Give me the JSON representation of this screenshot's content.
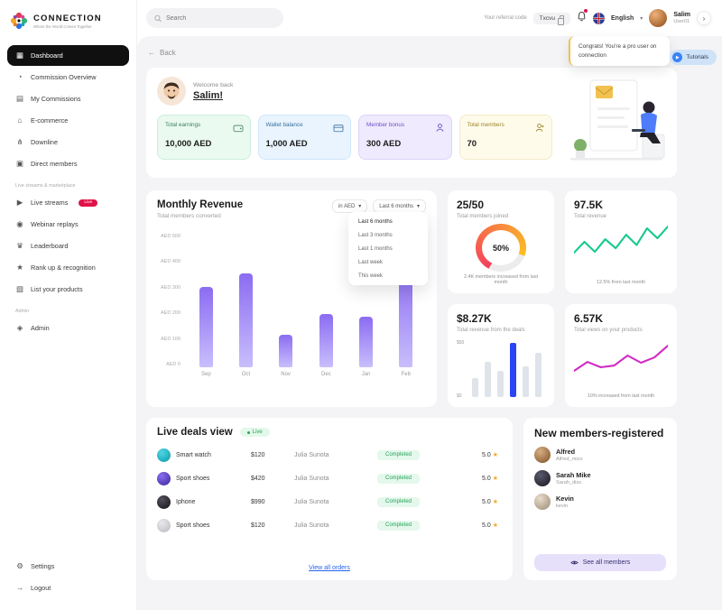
{
  "brand": {
    "name": "CONNECTION",
    "tagline": "Where the World Comes Together"
  },
  "icons": {
    "dashboard": "▦",
    "commission_overview": "◔",
    "my_commissions": "▤",
    "ecommerce": "⌂",
    "downline": "⋔",
    "direct_members": "▣",
    "live_streams": "▶",
    "webinar_replays": "◉",
    "leaderboard": "♛",
    "rank_up": "★",
    "list_products": "▧",
    "admin": "◈",
    "settings": "⚙",
    "logout": "→",
    "chevron_down": "▾",
    "back_arrow": "←",
    "star": "★",
    "arrow_right": "›",
    "tutorial_play": "▶"
  },
  "topbar": {
    "search_placeholder": "Search",
    "referral_label": "Your referral code",
    "referral_code": "Txcvu",
    "language": "English",
    "user_name": "Salim",
    "user_handle": "User01",
    "toast_text": "Congrats! You're a pro user on connection",
    "tutorials_label": "Tutorials"
  },
  "sidebar": {
    "items": [
      {
        "label": "Dashboard"
      },
      {
        "label": "Commission Overview"
      },
      {
        "label": "My Commissions"
      },
      {
        "label": "E-commerce"
      },
      {
        "label": "Downline"
      },
      {
        "label": "Direct members"
      }
    ],
    "section_live_label": "Live streams & marketplace",
    "live_items": [
      {
        "label": "Live streams",
        "badge": "Live"
      },
      {
        "label": "Webinar replays"
      },
      {
        "label": "Leaderboard"
      },
      {
        "label": "Rank up & recognition"
      },
      {
        "label": "List your products"
      }
    ],
    "section_admin_label": "Admin",
    "admin_items": [
      {
        "label": "Admin"
      }
    ],
    "footer_items": [
      {
        "label": "Settings"
      },
      {
        "label": "Logout"
      }
    ]
  },
  "main": {
    "back_label": "Back",
    "welcome": {
      "greeting": "Welcome back",
      "name": "Salim!"
    },
    "stats": [
      {
        "label": "Total earnings",
        "value": "10,000 AED"
      },
      {
        "label": "Wallet balance",
        "value": "1,000 AED"
      },
      {
        "label": "Member bonus",
        "value": "300 AED"
      },
      {
        "label": "Total members",
        "value": "70"
      }
    ],
    "monthly_revenue": {
      "title": "Monthly Revenue",
      "subtitle": "Total members converted",
      "currency_select": "in AED",
      "range_select": "Last 6 months",
      "dropdown_options": [
        "Last 6 months",
        "Last 3 months",
        "Last 1 months",
        "Last week",
        "This week"
      ]
    },
    "members_card": {
      "value": "25/50",
      "label": "Total members joined",
      "percent": "50%",
      "footnote": "2.4K members increased from last month"
    },
    "revenue_card": {
      "value": "97.5K",
      "label": "Total revenue",
      "footnote": "12.5% from last month"
    },
    "deals_card": {
      "value": "$8.27K",
      "label": "Total revenue from the deals"
    },
    "views_card": {
      "value": "6.57K",
      "label": "Total views on your products",
      "footnote": "10% increased from last month"
    },
    "live_deals": {
      "title": "Live deals view",
      "badge": "Live",
      "rows": [
        {
          "product": "Smart watch",
          "price": "$120",
          "buyer": "Julia Sunota",
          "status": "Completed",
          "rating": "5.0"
        },
        {
          "product": "Sport shoes",
          "price": "$420",
          "buyer": "Julia Sunota",
          "status": "Completed",
          "rating": "5.0"
        },
        {
          "product": "Iphone",
          "price": "$990",
          "buyer": "Julia Sunota",
          "status": "Completed",
          "rating": "5.0"
        },
        {
          "product": "Sport shoes",
          "price": "$120",
          "buyer": "Julia Sunota",
          "status": "Completed",
          "rating": "5.0"
        }
      ],
      "link_label": "View all orders"
    },
    "new_members": {
      "title": "New members-registered",
      "members": [
        {
          "name": "Alfred",
          "handle": "Alfred_mico"
        },
        {
          "name": "Sarah Mike",
          "handle": "Sarah_diss"
        },
        {
          "name": "Kevin",
          "handle": "kevin"
        }
      ],
      "button_label": "See all members"
    }
  },
  "chart_data": [
    {
      "id": "monthly_revenue_bars",
      "type": "bar",
      "title": "Monthly Revenue",
      "categories": [
        "Sep",
        "Oct",
        "Nov",
        "Dec",
        "Jan",
        "Feb"
      ],
      "values": [
        300,
        350,
        120,
        200,
        190,
        380
      ],
      "ylabel_ticks": [
        "AED 500",
        "AED 400",
        "AED 300",
        "AED 200",
        "AED 100",
        "AED 0"
      ],
      "ylim": [
        0,
        500
      ],
      "bar_color_top": "#8b6cf2",
      "bar_color_bottom": "#c9befc"
    },
    {
      "id": "members_gauge",
      "type": "pie",
      "percent": 50,
      "center_label": "50%",
      "colors": [
        "#f43f5e",
        "#fbbf24",
        "#ececec"
      ]
    },
    {
      "id": "revenue_sparkline",
      "type": "line",
      "values": [
        38,
        62,
        40,
        68,
        48,
        78,
        55,
        92,
        70,
        96
      ],
      "color": "#16c98d"
    },
    {
      "id": "deals_mini_bars",
      "type": "bar",
      "values": [
        16,
        30,
        22,
        46,
        26,
        38
      ],
      "highlight_index": 3,
      "highlight_color": "#2945f5",
      "bar_color": "#dfe3ea",
      "ylabel_ticks": [
        "$50",
        "$0"
      ],
      "ylim": [
        0,
        50
      ]
    },
    {
      "id": "views_sparkline",
      "type": "line",
      "values": [
        28,
        48,
        36,
        40,
        62,
        46,
        58,
        84
      ],
      "color": "#d329c4"
    }
  ]
}
